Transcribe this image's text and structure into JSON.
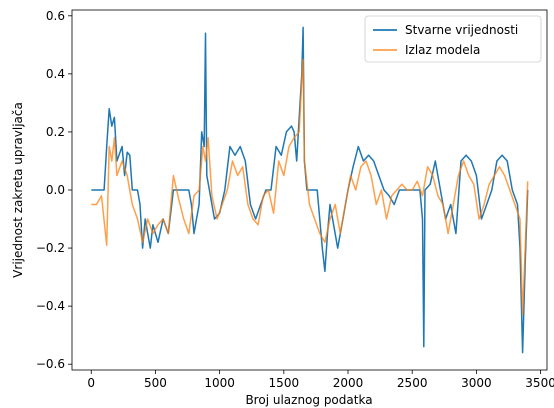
{
  "chart_data": {
    "type": "line",
    "xlabel": "Broj ulaznog podatka",
    "ylabel": "Vrijednost zakreta upravljača",
    "xlim": [
      -150,
      3550
    ],
    "ylim": [
      -0.62,
      0.62
    ],
    "xticks": [
      0,
      500,
      1000,
      1500,
      2000,
      2500,
      3000,
      3500
    ],
    "yticks": [
      -0.6,
      -0.4,
      -0.2,
      0.0,
      0.2,
      0.4,
      0.6
    ],
    "xtick_labels": [
      "0",
      "500",
      "1000",
      "1500",
      "2000",
      "2500",
      "3000",
      "3500"
    ],
    "ytick_labels": [
      "−0.6",
      "−0.4",
      "−0.2",
      "0.0",
      "0.2",
      "0.4",
      "0.6"
    ],
    "grid": false,
    "legend_position": "top-right",
    "series": [
      {
        "name": "Stvarne vrijednosti",
        "color": "#1f77b4",
        "x": [
          0,
          100,
          120,
          140,
          160,
          180,
          200,
          240,
          260,
          280,
          300,
          320,
          340,
          360,
          380,
          400,
          420,
          440,
          460,
          480,
          520,
          560,
          600,
          640,
          660,
          680,
          700,
          720,
          740,
          760,
          780,
          800,
          820,
          840,
          860,
          880,
          890,
          900,
          920,
          940,
          960,
          1000,
          1040,
          1080,
          1120,
          1160,
          1200,
          1240,
          1280,
          1320,
          1360,
          1400,
          1440,
          1480,
          1520,
          1560,
          1580,
          1600,
          1620,
          1640,
          1650,
          1660,
          1680,
          1700,
          1720,
          1760,
          1800,
          1820,
          1840,
          1860,
          1880,
          1920,
          1960,
          2000,
          2040,
          2080,
          2120,
          2160,
          2200,
          2240,
          2280,
          2320,
          2360,
          2400,
          2440,
          2480,
          2520,
          2560,
          2580,
          2590,
          2600,
          2640,
          2680,
          2720,
          2760,
          2800,
          2840,
          2880,
          2920,
          2960,
          3000,
          3040,
          3080,
          3120,
          3160,
          3200,
          3240,
          3280,
          3320,
          3340,
          3360,
          3380,
          3400
        ],
        "y": [
          0.0,
          0.0,
          0.15,
          0.28,
          0.22,
          0.25,
          0.1,
          0.15,
          0.05,
          0.13,
          0.12,
          0.0,
          0.0,
          0.0,
          -0.05,
          -0.2,
          -0.1,
          -0.15,
          -0.2,
          -0.12,
          -0.18,
          -0.1,
          -0.15,
          0.0,
          0.0,
          0.0,
          0.0,
          0.0,
          0.0,
          0.0,
          -0.05,
          -0.15,
          -0.1,
          -0.05,
          0.2,
          0.15,
          0.54,
          0.05,
          0.0,
          -0.05,
          -0.1,
          -0.08,
          0.0,
          0.15,
          0.12,
          0.15,
          0.1,
          -0.05,
          -0.1,
          -0.05,
          0.0,
          0.0,
          0.15,
          0.12,
          0.2,
          0.22,
          0.2,
          0.1,
          0.25,
          0.4,
          0.56,
          0.1,
          0.0,
          0.0,
          0.0,
          0.0,
          -0.2,
          -0.28,
          -0.15,
          -0.05,
          -0.1,
          -0.2,
          -0.1,
          0.0,
          0.08,
          0.15,
          0.1,
          0.12,
          0.1,
          0.05,
          0.0,
          -0.02,
          -0.05,
          0.0,
          0.0,
          0.0,
          0.0,
          0.0,
          -0.1,
          -0.54,
          0.0,
          0.02,
          0.1,
          0.0,
          -0.1,
          -0.05,
          -0.15,
          0.1,
          0.12,
          0.1,
          0.05,
          -0.1,
          -0.05,
          0.0,
          0.1,
          0.12,
          0.1,
          0.0,
          -0.05,
          -0.2,
          -0.56,
          -0.25,
          0.0
        ]
      },
      {
        "name": "Izlaz modela",
        "color": "#ff7f0e",
        "x": [
          0,
          40,
          80,
          120,
          140,
          160,
          180,
          200,
          240,
          280,
          320,
          360,
          400,
          440,
          480,
          520,
          560,
          600,
          640,
          680,
          720,
          760,
          800,
          840,
          870,
          890,
          910,
          940,
          980,
          1020,
          1060,
          1100,
          1140,
          1180,
          1220,
          1260,
          1300,
          1340,
          1380,
          1420,
          1460,
          1500,
          1540,
          1580,
          1620,
          1640,
          1650,
          1660,
          1700,
          1740,
          1780,
          1820,
          1860,
          1900,
          1940,
          1980,
          2020,
          2060,
          2100,
          2140,
          2180,
          2220,
          2260,
          2300,
          2340,
          2380,
          2420,
          2460,
          2500,
          2540,
          2580,
          2620,
          2660,
          2700,
          2740,
          2780,
          2820,
          2860,
          2900,
          2940,
          2980,
          3020,
          3060,
          3100,
          3140,
          3180,
          3220,
          3260,
          3300,
          3340,
          3360,
          3380,
          3400
        ],
        "y": [
          -0.05,
          -0.05,
          -0.02,
          -0.19,
          0.15,
          0.1,
          0.18,
          0.05,
          0.1,
          0.05,
          -0.05,
          -0.1,
          -0.18,
          -0.1,
          -0.15,
          -0.12,
          -0.1,
          -0.15,
          0.05,
          -0.03,
          -0.1,
          -0.15,
          -0.02,
          0.0,
          0.15,
          0.1,
          0.18,
          -0.02,
          -0.1,
          -0.05,
          0.0,
          0.1,
          0.05,
          0.08,
          -0.05,
          -0.1,
          -0.12,
          -0.02,
          0.0,
          -0.08,
          0.1,
          0.05,
          0.15,
          0.18,
          0.2,
          0.38,
          0.45,
          0.1,
          -0.05,
          -0.1,
          -0.15,
          -0.18,
          -0.1,
          -0.05,
          -0.15,
          -0.05,
          0.05,
          0.0,
          0.08,
          0.1,
          0.05,
          -0.05,
          0.0,
          -0.1,
          -0.02,
          0.0,
          0.02,
          0.0,
          0.0,
          0.03,
          -0.02,
          0.08,
          0.05,
          -0.02,
          -0.05,
          -0.15,
          -0.05,
          0.05,
          0.1,
          0.05,
          0.02,
          -0.1,
          -0.05,
          0.02,
          0.05,
          0.08,
          0.05,
          0.0,
          -0.05,
          -0.1,
          -0.43,
          -0.2,
          0.03
        ]
      }
    ]
  }
}
